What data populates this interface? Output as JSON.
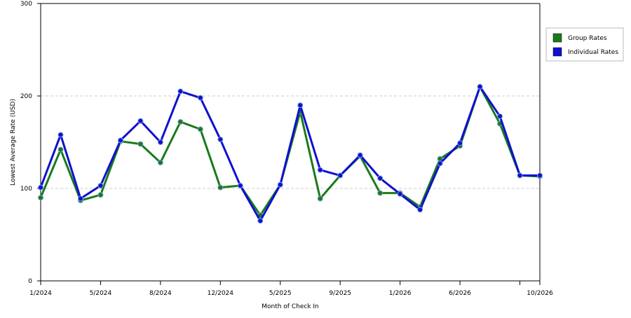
{
  "chart_data": {
    "type": "line",
    "x_label": "Month of Check In",
    "y_label": "Lowest Average Rate (USD)",
    "categories": [
      "1/2024",
      null,
      null,
      "5/2024",
      null,
      null,
      "8/2024",
      null,
      null,
      "12/2024",
      null,
      null,
      "5/2025",
      null,
      null,
      "9/2025",
      null,
      null,
      "1/2026",
      null,
      null,
      "6/2026",
      null,
      null,
      null,
      "10/2026"
    ],
    "series": [
      {
        "name": "Group Rates",
        "color": "#1a7a1a",
        "values": [
          90,
          142,
          87,
          93,
          151,
          148,
          128,
          172,
          164,
          101,
          103,
          71,
          104,
          183,
          89,
          114,
          135,
          95,
          95,
          80,
          132,
          146,
          210,
          170,
          114,
          113
        ]
      },
      {
        "name": "Individual Rates",
        "color": "#1010d0",
        "values": [
          101,
          158,
          89,
          103,
          152,
          173,
          150,
          205,
          198,
          153,
          103,
          65,
          104,
          190,
          120,
          114,
          136,
          111,
          94,
          77,
          127,
          149,
          210,
          178,
          114,
          114
        ]
      }
    ],
    "ylim": [
      0,
      300
    ],
    "yticks": [
      0,
      100,
      200,
      300
    ],
    "grid": true,
    "legend": "right"
  }
}
